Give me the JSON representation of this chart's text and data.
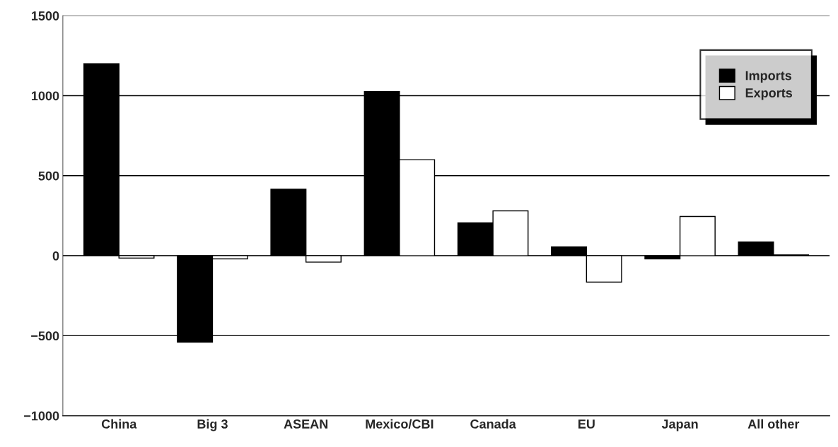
{
  "chart_data": {
    "type": "bar",
    "categories": [
      "China",
      "Big 3",
      "ASEAN",
      "Mexico/CBI",
      "Canada",
      "EU",
      "Japan",
      "All other"
    ],
    "series": [
      {
        "name": "Imports",
        "color": "#000000",
        "values": [
          1200,
          -540,
          415,
          1025,
          205,
          55,
          -20,
          85
        ]
      },
      {
        "name": "Exports",
        "color": "#ffffff",
        "values": [
          -15,
          -20,
          -40,
          600,
          280,
          -165,
          245,
          5
        ]
      }
    ],
    "ylim": [
      -1000,
      1500
    ],
    "yticks": [
      {
        "value": -1000,
        "label": "−1000"
      },
      {
        "value": -500,
        "label": "−500"
      },
      0,
      500,
      1000,
      1500
    ],
    "grid": "y",
    "legend": "top right"
  }
}
